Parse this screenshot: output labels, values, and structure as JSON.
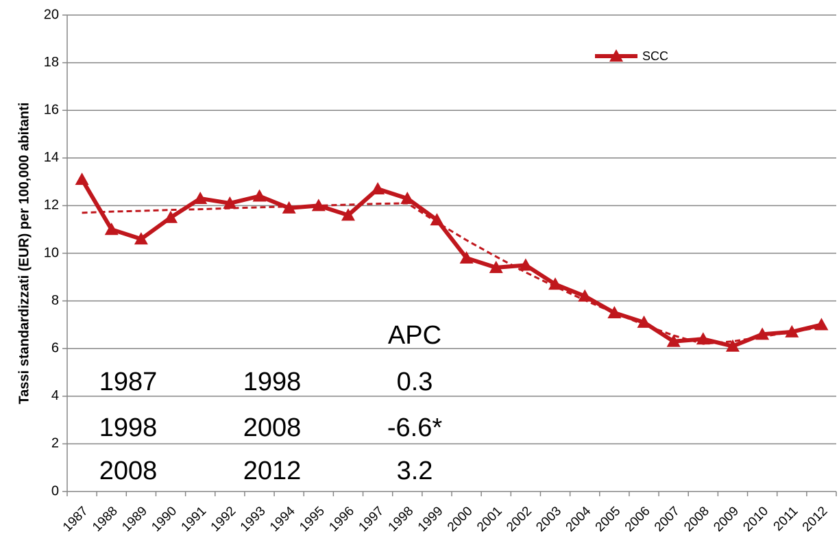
{
  "chart_data": {
    "type": "line",
    "ylabel": "Tassi standardizzati  (EUR) per 100,000 abitanti",
    "categories": [
      "1987",
      "1988",
      "1989",
      "1990",
      "1991",
      "1992",
      "1993",
      "1994",
      "1995",
      "1996",
      "1997",
      "1998",
      "1999",
      "2000",
      "2001",
      "2002",
      "2003",
      "2004",
      "2005",
      "2006",
      "2007",
      "2008",
      "2009",
      "2010",
      "2011",
      "2012"
    ],
    "series": [
      {
        "name": "SCC",
        "color": "#c0171d",
        "marker": "triangle",
        "values": [
          13.1,
          11.0,
          10.6,
          11.5,
          12.3,
          12.1,
          12.4,
          11.9,
          12.0,
          11.6,
          12.7,
          12.3,
          11.4,
          9.8,
          9.4,
          9.5,
          8.7,
          8.2,
          7.5,
          7.1,
          6.3,
          6.4,
          6.1,
          6.6,
          6.7,
          7.0
        ]
      },
      {
        "color": "#c0171d",
        "dashed": true,
        "values": [
          11.7,
          11.75,
          11.78,
          11.82,
          11.85,
          11.89,
          11.93,
          11.96,
          12.0,
          12.04,
          12.08,
          12.1,
          11.3,
          10.55,
          9.86,
          9.2,
          8.6,
          8.03,
          7.5,
          7.0,
          6.55,
          6.2,
          6.3,
          6.5,
          6.7,
          6.9
        ]
      }
    ],
    "ylim": [
      0,
      20
    ],
    "yticks": [
      0,
      2,
      4,
      6,
      8,
      10,
      12,
      14,
      16,
      18,
      20
    ],
    "grid": true,
    "annotation_table": {
      "header": "APC",
      "rows": [
        [
          "1987",
          "1998",
          "0.3"
        ],
        [
          "1998",
          "2008",
          "-6.6*"
        ],
        [
          "2008",
          "2012",
          "3.2"
        ]
      ]
    }
  }
}
